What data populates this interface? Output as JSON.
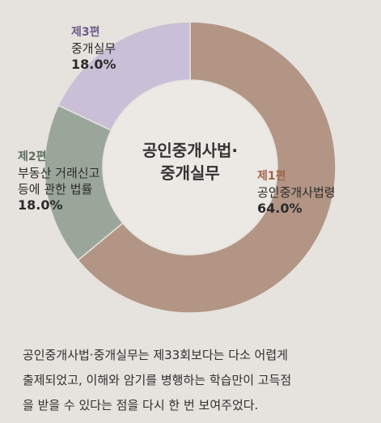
{
  "chart_data": {
    "type": "donut",
    "center_title": [
      "공인중개사법·",
      "중개실무"
    ],
    "slices": [
      {
        "part": "제1편",
        "name": "공인중개사법령",
        "value": 64.0,
        "value_label": "64.0%",
        "color": "#b29584"
      },
      {
        "part": "제2편",
        "name_lines": [
          "부동산 거래신고",
          "등에 관한 법률"
        ],
        "value": 18.0,
        "value_label": "18.0%",
        "color": "#9ba69a"
      },
      {
        "part": "제3편",
        "name": "중개실무",
        "value": 18.0,
        "value_label": "18.0%",
        "color": "#c9bfd6"
      }
    ]
  },
  "caption": {
    "lines": [
      "공인중개사법·중개실무는 제33회보다는 다소 어렵게",
      "출제되었고, 이해와 암기를 병행하는 학습만이 고득점",
      "을 받을 수 있다는 점을 다시 한 번 보여주었다."
    ]
  }
}
